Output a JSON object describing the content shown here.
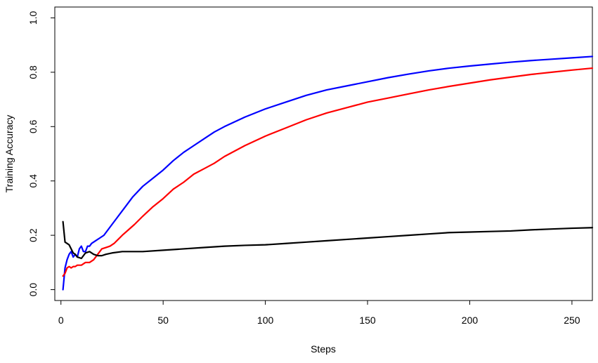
{
  "chart_data": {
    "type": "line",
    "title": "",
    "xlabel": "Steps",
    "ylabel": "Training Accuracy",
    "xlim": [
      -3,
      260
    ],
    "ylim": [
      -0.04,
      1.04
    ],
    "x_ticks": [
      0,
      50,
      100,
      150,
      200,
      250
    ],
    "y_ticks": [
      0.0,
      0.2,
      0.4,
      0.6,
      0.8,
      1.0
    ],
    "x_tick_labels": [
      "0",
      "50",
      "100",
      "150",
      "200",
      "250"
    ],
    "y_tick_labels": [
      "0.0",
      "0.2",
      "0.4",
      "0.6",
      "0.8",
      "1.0"
    ],
    "grid": false,
    "legend": "none",
    "series": [
      {
        "color": "#0000ff",
        "points": [
          [
            1,
            0.0
          ],
          [
            2,
            0.08
          ],
          [
            3,
            0.11
          ],
          [
            4,
            0.13
          ],
          [
            5,
            0.14
          ],
          [
            6,
            0.12
          ],
          [
            7,
            0.13
          ],
          [
            8,
            0.12
          ],
          [
            9,
            0.15
          ],
          [
            10,
            0.16
          ],
          [
            11,
            0.14
          ],
          [
            12,
            0.14
          ],
          [
            13,
            0.16
          ],
          [
            14,
            0.16
          ],
          [
            15,
            0.17
          ],
          [
            17,
            0.18
          ],
          [
            19,
            0.19
          ],
          [
            21,
            0.2
          ],
          [
            23,
            0.22
          ],
          [
            25,
            0.24
          ],
          [
            28,
            0.27
          ],
          [
            31,
            0.3
          ],
          [
            35,
            0.34
          ],
          [
            40,
            0.38
          ],
          [
            45,
            0.41
          ],
          [
            50,
            0.44
          ],
          [
            55,
            0.475
          ],
          [
            60,
            0.505
          ],
          [
            65,
            0.53
          ],
          [
            70,
            0.555
          ],
          [
            75,
            0.58
          ],
          [
            80,
            0.6
          ],
          [
            90,
            0.635
          ],
          [
            100,
            0.665
          ],
          [
            110,
            0.69
          ],
          [
            120,
            0.715
          ],
          [
            130,
            0.735
          ],
          [
            140,
            0.75
          ],
          [
            150,
            0.765
          ],
          [
            160,
            0.78
          ],
          [
            170,
            0.793
          ],
          [
            180,
            0.805
          ],
          [
            190,
            0.815
          ],
          [
            200,
            0.823
          ],
          [
            210,
            0.83
          ],
          [
            220,
            0.837
          ],
          [
            230,
            0.843
          ],
          [
            240,
            0.848
          ],
          [
            250,
            0.853
          ],
          [
            260,
            0.858
          ]
        ]
      },
      {
        "color": "#ff0000",
        "points": [
          [
            1,
            0.05
          ],
          [
            2,
            0.06
          ],
          [
            3,
            0.08
          ],
          [
            4,
            0.085
          ],
          [
            5,
            0.08
          ],
          [
            6,
            0.085
          ],
          [
            7,
            0.085
          ],
          [
            8,
            0.09
          ],
          [
            10,
            0.09
          ],
          [
            12,
            0.1
          ],
          [
            14,
            0.1
          ],
          [
            16,
            0.11
          ],
          [
            18,
            0.13
          ],
          [
            20,
            0.15
          ],
          [
            22,
            0.155
          ],
          [
            24,
            0.16
          ],
          [
            26,
            0.17
          ],
          [
            28,
            0.185
          ],
          [
            30,
            0.2
          ],
          [
            33,
            0.22
          ],
          [
            36,
            0.24
          ],
          [
            40,
            0.27
          ],
          [
            45,
            0.305
          ],
          [
            50,
            0.335
          ],
          [
            55,
            0.37
          ],
          [
            60,
            0.395
          ],
          [
            65,
            0.425
          ],
          [
            70,
            0.445
          ],
          [
            75,
            0.465
          ],
          [
            80,
            0.49
          ],
          [
            90,
            0.53
          ],
          [
            100,
            0.565
          ],
          [
            110,
            0.595
          ],
          [
            120,
            0.625
          ],
          [
            130,
            0.65
          ],
          [
            140,
            0.67
          ],
          [
            150,
            0.69
          ],
          [
            160,
            0.705
          ],
          [
            170,
            0.72
          ],
          [
            180,
            0.735
          ],
          [
            190,
            0.748
          ],
          [
            200,
            0.76
          ],
          [
            210,
            0.772
          ],
          [
            220,
            0.782
          ],
          [
            230,
            0.792
          ],
          [
            240,
            0.8
          ],
          [
            250,
            0.808
          ],
          [
            260,
            0.815
          ]
        ]
      },
      {
        "color": "#000000",
        "points": [
          [
            1,
            0.25
          ],
          [
            2,
            0.175
          ],
          [
            3,
            0.17
          ],
          [
            4,
            0.165
          ],
          [
            5,
            0.15
          ],
          [
            6,
            0.135
          ],
          [
            7,
            0.13
          ],
          [
            8,
            0.12
          ],
          [
            10,
            0.115
          ],
          [
            12,
            0.135
          ],
          [
            14,
            0.14
          ],
          [
            16,
            0.13
          ],
          [
            18,
            0.125
          ],
          [
            20,
            0.125
          ],
          [
            22,
            0.13
          ],
          [
            25,
            0.135
          ],
          [
            30,
            0.14
          ],
          [
            40,
            0.14
          ],
          [
            50,
            0.145
          ],
          [
            60,
            0.15
          ],
          [
            70,
            0.155
          ],
          [
            80,
            0.16
          ],
          [
            90,
            0.163
          ],
          [
            100,
            0.165
          ],
          [
            110,
            0.17
          ],
          [
            120,
            0.175
          ],
          [
            130,
            0.18
          ],
          [
            140,
            0.185
          ],
          [
            150,
            0.19
          ],
          [
            160,
            0.195
          ],
          [
            170,
            0.2
          ],
          [
            180,
            0.205
          ],
          [
            190,
            0.21
          ],
          [
            200,
            0.212
          ],
          [
            210,
            0.214
          ],
          [
            220,
            0.216
          ],
          [
            230,
            0.22
          ],
          [
            240,
            0.223
          ],
          [
            250,
            0.226
          ],
          [
            260,
            0.228
          ]
        ]
      }
    ]
  }
}
